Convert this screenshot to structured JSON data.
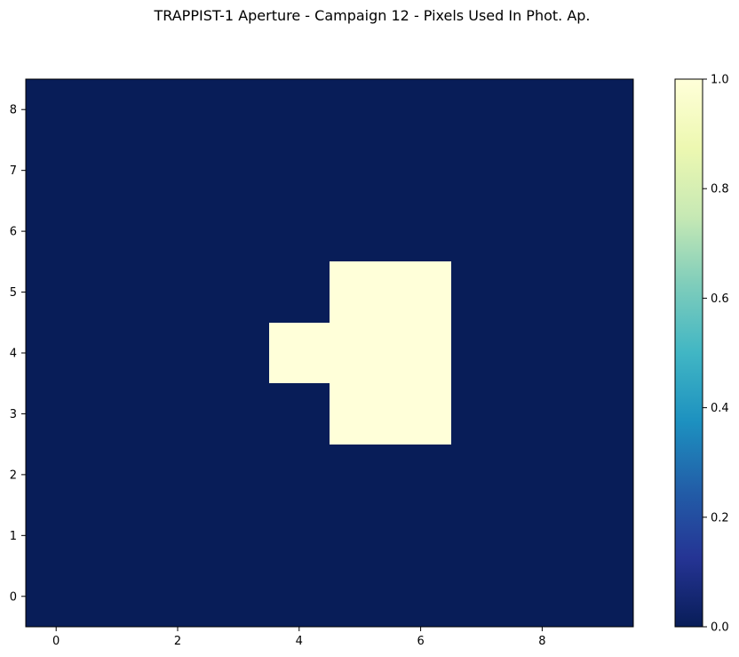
{
  "chart_data": {
    "type": "heatmap",
    "title": "TRAPPIST-1 Aperture - Campaign 12 - Pixels Used In Phot. Ap.",
    "xlabel": "",
    "ylabel": "",
    "x_ticks": [
      0,
      2,
      4,
      6,
      8
    ],
    "y_ticks": [
      0,
      1,
      2,
      3,
      4,
      5,
      6,
      7,
      8
    ],
    "xlim": [
      -0.5,
      9.5
    ],
    "ylim": [
      -0.5,
      8.5
    ],
    "colorbar": {
      "colormap": "YlGnBu_r",
      "range": [
        0.0,
        1.0
      ],
      "ticks": [
        "0.0",
        "0.2",
        "0.4",
        "0.6",
        "0.8",
        "1.0"
      ],
      "low_color": "#081d58",
      "high_color": "#ffffd9"
    },
    "grid": false,
    "values": [
      [
        0,
        0,
        0,
        0,
        0,
        0,
        0,
        0,
        0,
        0
      ],
      [
        0,
        0,
        0,
        0,
        0,
        0,
        0,
        0,
        0,
        0
      ],
      [
        0,
        0,
        0,
        0,
        0,
        0,
        0,
        0,
        0,
        0
      ],
      [
        0,
        0,
        0,
        0,
        0,
        1,
        1,
        0,
        0,
        0
      ],
      [
        0,
        0,
        0,
        0,
        1,
        1,
        1,
        0,
        0,
        0
      ],
      [
        0,
        0,
        0,
        0,
        0,
        1,
        1,
        0,
        0,
        0
      ],
      [
        0,
        0,
        0,
        0,
        0,
        0,
        0,
        0,
        0,
        0
      ],
      [
        0,
        0,
        0,
        0,
        0,
        0,
        0,
        0,
        0,
        0
      ],
      [
        0,
        0,
        0,
        0,
        0,
        0,
        0,
        0,
        0,
        0
      ]
    ]
  }
}
